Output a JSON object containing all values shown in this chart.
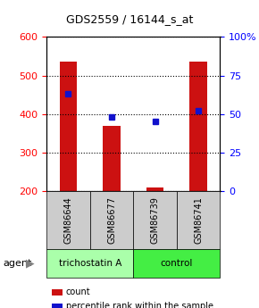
{
  "title": "GDS2559 / 16144_s_at",
  "samples": [
    "GSM86644",
    "GSM86677",
    "GSM86739",
    "GSM86741"
  ],
  "groups": [
    "trichostatin A",
    "trichostatin A",
    "control",
    "control"
  ],
  "counts": [
    536,
    370,
    210,
    537
  ],
  "count_base": 200,
  "percentile_ranks": [
    63,
    48,
    45,
    52
  ],
  "ylim_left": [
    200,
    600
  ],
  "ylim_right": [
    0,
    100
  ],
  "left_ticks": [
    200,
    300,
    400,
    500,
    600
  ],
  "right_ticks": [
    0,
    25,
    50,
    75,
    100
  ],
  "right_tick_labels": [
    "0",
    "25",
    "50",
    "75",
    "100%"
  ],
  "bar_color": "#cc1111",
  "dot_color": "#1111cc",
  "group_colors": {
    "trichostatin A": "#aaffaa",
    "control": "#44ee44"
  },
  "sample_bg_color": "#cccccc",
  "bar_width": 0.4,
  "legend_items": [
    {
      "label": "count",
      "color": "#cc1111"
    },
    {
      "label": "percentile rank within the sample",
      "color": "#1111cc"
    }
  ]
}
